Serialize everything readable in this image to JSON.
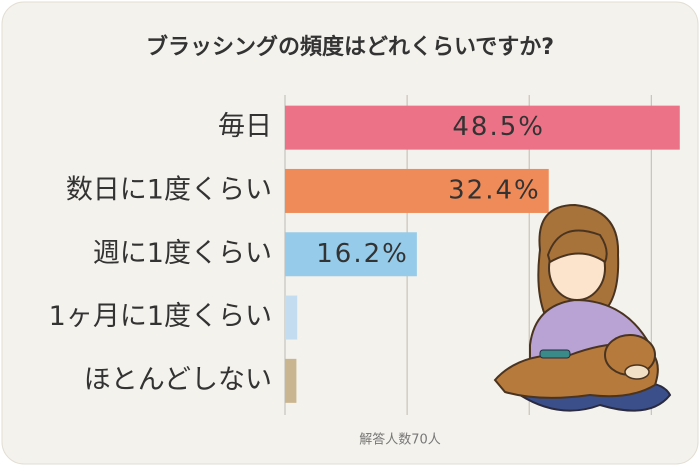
{
  "chart_data": {
    "type": "bar",
    "orientation": "horizontal",
    "title": "ブラッシングの頻度はどれくらいですか?",
    "categories": [
      "毎日",
      "数日に1度くらい",
      "週に1度くらい",
      "1ヶ月に1度くらい",
      "ほとんどしない"
    ],
    "values": [
      48.5,
      32.4,
      16.2,
      1.5,
      1.4
    ],
    "value_labels": [
      "48.5%",
      "32.4%",
      "16.2%",
      null,
      null
    ],
    "colors": [
      "#ec7387",
      "#ef8b58",
      "#96cbe9",
      "#c3dcef",
      "#c9b58f"
    ],
    "xlim": [
      0,
      50
    ],
    "xticks": [
      0,
      15,
      30,
      45
    ],
    "grid": true,
    "note": "解答人数70人"
  }
}
